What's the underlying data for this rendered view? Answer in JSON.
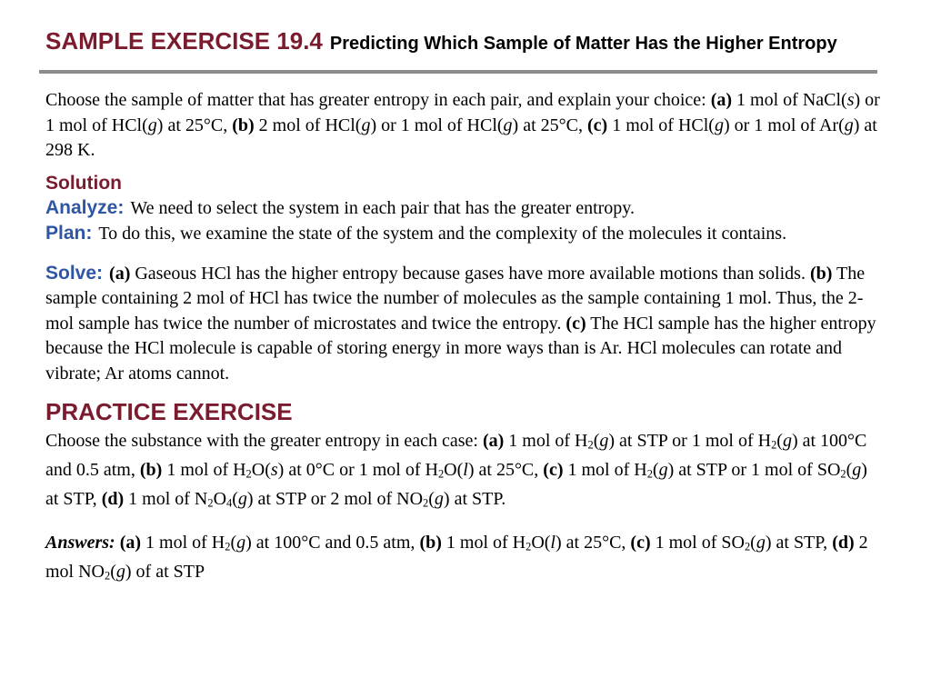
{
  "colors": {
    "maroon": "#7A1B2E",
    "blue": "#2E56A5",
    "rule": "#8C8C8C",
    "text": "#000000",
    "background": "#FFFFFF"
  },
  "title": {
    "label": "SAMPLE EXERCISE 19.4",
    "subtitle": "Predicting Which Sample of Matter Has the Higher Entropy"
  },
  "problem": {
    "runs": [
      {
        "t": "Choose the sample of matter that has greater entropy in each pair, and explain your choice: "
      },
      {
        "t": "(a)",
        "b": true
      },
      {
        "t": " 1 mol of NaCl("
      },
      {
        "t": "s",
        "i": true
      },
      {
        "t": ") or 1 mol of HCl("
      },
      {
        "t": "g",
        "i": true
      },
      {
        "t": ") at 25°C, "
      },
      {
        "t": "(b)",
        "b": true
      },
      {
        "t": " 2 mol of HCl("
      },
      {
        "t": "g",
        "i": true
      },
      {
        "t": ") or 1 mol of HCl("
      },
      {
        "t": "g",
        "i": true
      },
      {
        "t": ") at 25°C, "
      },
      {
        "t": "(c)",
        "b": true
      },
      {
        "t": " 1 mol of HCl("
      },
      {
        "t": "g",
        "i": true
      },
      {
        "t": ") or 1 mol of Ar("
      },
      {
        "t": "g",
        "i": true
      },
      {
        "t": ") at 298 K."
      }
    ]
  },
  "solution": {
    "heading": "Solution",
    "analyze_label": "Analyze:",
    "analyze_runs": [
      {
        "t": "We need to select the system in each pair that has the greater entropy."
      }
    ],
    "plan_label": "Plan:",
    "plan_runs": [
      {
        "t": "To do this, we examine the state of the system and the complexity of the molecules it contains."
      }
    ],
    "solve_label": "Solve:",
    "solve_runs": [
      {
        "t": "(a)",
        "b": true
      },
      {
        "t": " Gaseous HCl has the higher entropy because gases have more available motions than solids. "
      },
      {
        "t": "(b)",
        "b": true
      },
      {
        "t": " The sample containing 2 mol of HCl has twice the number of molecules as the sample containing 1 mol. Thus, the 2-mol sample has twice the number of microstates and twice the entropy. "
      },
      {
        "t": "(c)",
        "b": true
      },
      {
        "t": " The HCl sample has the higher entropy because the HCl molecule is capable of storing energy in more ways than is Ar. HCl molecules can rotate and vibrate; Ar atoms cannot."
      }
    ]
  },
  "practice": {
    "heading": "PRACTICE EXERCISE",
    "runs": [
      {
        "t": "Choose the substance with the greater entropy in each case: "
      },
      {
        "t": "(a)",
        "b": true
      },
      {
        "t": " 1 mol of H"
      },
      {
        "t": "2",
        "sub": true
      },
      {
        "t": "("
      },
      {
        "t": "g",
        "i": true
      },
      {
        "t": ") at STP or 1 mol of H"
      },
      {
        "t": "2",
        "sub": true
      },
      {
        "t": "("
      },
      {
        "t": "g",
        "i": true
      },
      {
        "t": ") at 100°C and 0.5 atm, "
      },
      {
        "t": "(b)",
        "b": true
      },
      {
        "t": " 1 mol of H"
      },
      {
        "t": "2",
        "sub": true
      },
      {
        "t": "O("
      },
      {
        "t": "s",
        "i": true
      },
      {
        "t": ") at 0°C or 1 mol of H"
      },
      {
        "t": "2",
        "sub": true
      },
      {
        "t": "O("
      },
      {
        "t": "l",
        "i": true
      },
      {
        "t": ") at 25°C, "
      },
      {
        "t": "(c)",
        "b": true
      },
      {
        "t": " 1 mol of H"
      },
      {
        "t": "2",
        "sub": true
      },
      {
        "t": "("
      },
      {
        "t": "g",
        "i": true
      },
      {
        "t": ") at STP or 1 mol of SO"
      },
      {
        "t": "2",
        "sub": true
      },
      {
        "t": "("
      },
      {
        "t": "g",
        "i": true
      },
      {
        "t": ") at STP, "
      },
      {
        "t": "(d)",
        "b": true
      },
      {
        "t": " 1 mol of N"
      },
      {
        "t": "2",
        "sub": true
      },
      {
        "t": "O"
      },
      {
        "t": "4",
        "sub": true
      },
      {
        "t": "("
      },
      {
        "t": "g",
        "i": true
      },
      {
        "t": ") at STP or 2 mol of NO"
      },
      {
        "t": "2",
        "sub": true
      },
      {
        "t": "("
      },
      {
        "t": "g",
        "i": true
      },
      {
        "t": ") at STP."
      }
    ]
  },
  "answers": {
    "runs": [
      {
        "t": "Answers:",
        "b": true,
        "i": true
      },
      {
        "t": " "
      },
      {
        "t": "(a)",
        "b": true
      },
      {
        "t": " 1 mol of H"
      },
      {
        "t": "2",
        "sub": true
      },
      {
        "t": "("
      },
      {
        "t": "g",
        "i": true
      },
      {
        "t": ") at 100°C and 0.5 atm, "
      },
      {
        "t": "(b)",
        "b": true
      },
      {
        "t": " 1 mol of H"
      },
      {
        "t": "2",
        "sub": true
      },
      {
        "t": "O("
      },
      {
        "t": "l",
        "i": true
      },
      {
        "t": ") at 25°C, "
      },
      {
        "t": "(c)",
        "b": true
      },
      {
        "t": " 1 mol of SO"
      },
      {
        "t": "2",
        "sub": true
      },
      {
        "t": "("
      },
      {
        "t": "g",
        "i": true
      },
      {
        "t": ") at STP, "
      },
      {
        "t": "(d)",
        "b": true
      },
      {
        "t": " 2 mol NO"
      },
      {
        "t": "2",
        "sub": true
      },
      {
        "t": "("
      },
      {
        "t": "g",
        "i": true
      },
      {
        "t": ") of at STP"
      }
    ]
  }
}
